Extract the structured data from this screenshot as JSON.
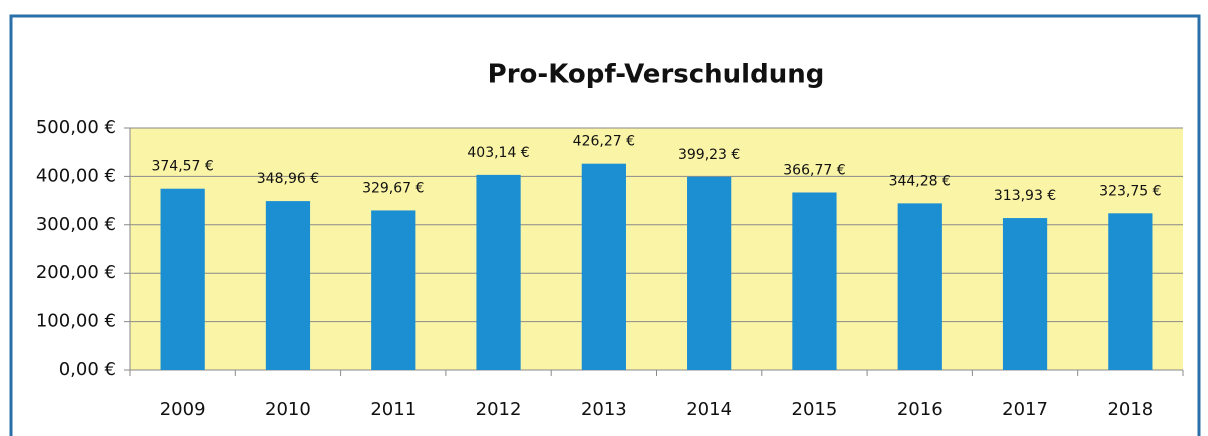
{
  "chart_data": {
    "type": "bar",
    "title": "Pro-Kopf-Verschuldung",
    "categories": [
      "2009",
      "2010",
      "2011",
      "2012",
      "2013",
      "2014",
      "2015",
      "2016",
      "2017",
      "2018"
    ],
    "values": [
      374.57,
      348.96,
      329.67,
      403.14,
      426.27,
      399.23,
      366.77,
      344.28,
      313.93,
      323.75
    ],
    "value_labels": [
      "374,57 €",
      "348,96 €",
      "329,67 €",
      "403,14 €",
      "426,27 €",
      "399,23 €",
      "366,77 €",
      "344,28 €",
      "313,93 €",
      "323,75 €"
    ],
    "color": "#1b8fd2",
    "ylim": [
      0,
      500
    ],
    "yticks": [
      {
        "value": 0,
        "label": "0,00 €"
      },
      {
        "value": 100,
        "label": "100,00 €"
      },
      {
        "value": 200,
        "label": "200,00 €"
      },
      {
        "value": 300,
        "label": "300,00 €"
      },
      {
        "value": 400,
        "label": "400,00 €"
      },
      {
        "value": 500,
        "label": "500,00 €"
      }
    ],
    "grid": true
  }
}
